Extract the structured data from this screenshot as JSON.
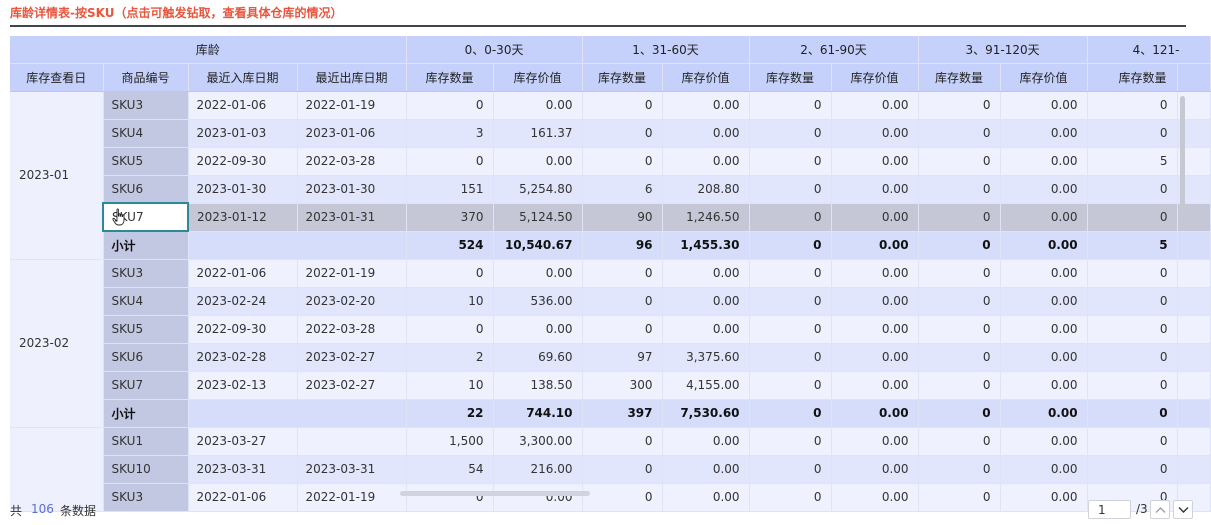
{
  "title": "库龄详情表-按SKU（点击可触发钻取，查看具体仓库的情况）",
  "header": {
    "group_label": "库龄",
    "buckets": [
      "0、0-30天",
      "1、31-60天",
      "2、61-90天",
      "3、91-120天",
      "4、121-"
    ],
    "col_date": "库存查看日",
    "col_sku": "商品编号",
    "col_in": "最近入库日期",
    "col_out": "最近出库日期",
    "col_qty": "库存数量",
    "col_val": "库存价值"
  },
  "groups": [
    {
      "date": "2023-01",
      "rows": [
        {
          "sku": "SKU3",
          "in": "2022-01-06",
          "out": "2022-01-19",
          "v": [
            "0",
            "0.00",
            "0",
            "0.00",
            "0",
            "0.00",
            "0",
            "0.00",
            "0"
          ]
        },
        {
          "sku": "SKU4",
          "in": "2023-01-03",
          "out": "2023-01-06",
          "v": [
            "3",
            "161.37",
            "0",
            "0.00",
            "0",
            "0.00",
            "0",
            "0.00",
            "0"
          ]
        },
        {
          "sku": "SKU5",
          "in": "2022-09-30",
          "out": "2022-03-28",
          "v": [
            "0",
            "0.00",
            "0",
            "0.00",
            "0",
            "0.00",
            "0",
            "0.00",
            "5"
          ]
        },
        {
          "sku": "SKU6",
          "in": "2023-01-30",
          "out": "2023-01-30",
          "v": [
            "151",
            "5,254.80",
            "6",
            "208.80",
            "0",
            "0.00",
            "0",
            "0.00",
            "0"
          ]
        },
        {
          "sku": "SKU7",
          "in": "2023-01-12",
          "out": "2023-01-31",
          "v": [
            "370",
            "5,124.50",
            "90",
            "1,246.50",
            "0",
            "0.00",
            "0",
            "0.00",
            "0"
          ]
        }
      ],
      "subtotal": {
        "label": "小计",
        "v": [
          "524",
          "10,540.67",
          "96",
          "1,455.30",
          "0",
          "0.00",
          "0",
          "0.00",
          "5"
        ]
      }
    },
    {
      "date": "2023-02",
      "rows": [
        {
          "sku": "SKU3",
          "in": "2022-01-06",
          "out": "2022-01-19",
          "v": [
            "0",
            "0.00",
            "0",
            "0.00",
            "0",
            "0.00",
            "0",
            "0.00",
            "0"
          ]
        },
        {
          "sku": "SKU4",
          "in": "2023-02-24",
          "out": "2023-02-20",
          "v": [
            "10",
            "536.00",
            "0",
            "0.00",
            "0",
            "0.00",
            "0",
            "0.00",
            "0"
          ]
        },
        {
          "sku": "SKU5",
          "in": "2022-09-30",
          "out": "2022-03-28",
          "v": [
            "0",
            "0.00",
            "0",
            "0.00",
            "0",
            "0.00",
            "0",
            "0.00",
            "0"
          ]
        },
        {
          "sku": "SKU6",
          "in": "2023-02-28",
          "out": "2023-02-27",
          "v": [
            "2",
            "69.60",
            "97",
            "3,375.60",
            "0",
            "0.00",
            "0",
            "0.00",
            "0"
          ]
        },
        {
          "sku": "SKU7",
          "in": "2023-02-13",
          "out": "2023-02-27",
          "v": [
            "10",
            "138.50",
            "300",
            "4,155.00",
            "0",
            "0.00",
            "0",
            "0.00",
            "0"
          ]
        }
      ],
      "subtotal": {
        "label": "小计",
        "v": [
          "22",
          "744.10",
          "397",
          "7,530.60",
          "0",
          "0.00",
          "0",
          "0.00",
          "0"
        ]
      }
    },
    {
      "date": "",
      "rows": [
        {
          "sku": "SKU1",
          "in": "2023-03-27",
          "out": "",
          "v": [
            "1,500",
            "3,300.00",
            "0",
            "0.00",
            "0",
            "0.00",
            "0",
            "0.00",
            "0"
          ]
        },
        {
          "sku": "SKU10",
          "in": "2023-03-31",
          "out": "2023-03-31",
          "v": [
            "54",
            "216.00",
            "0",
            "0.00",
            "0",
            "0.00",
            "0",
            "0.00",
            "0"
          ]
        },
        {
          "sku": "SKU3",
          "in": "2022-01-06",
          "out": "2022-01-19",
          "v": [
            "0",
            "0.00",
            "0",
            "0.00",
            "0",
            "0.00",
            "0",
            "0.00",
            "0"
          ]
        }
      ]
    }
  ],
  "footer": {
    "prefix": "共",
    "count": "106",
    "suffix": "条数据",
    "page": "1",
    "total_pages": "/3"
  },
  "icons": {
    "cursor": "hand-pointer-icon",
    "prev": "chevron-up-icon",
    "next": "chevron-down-icon"
  }
}
